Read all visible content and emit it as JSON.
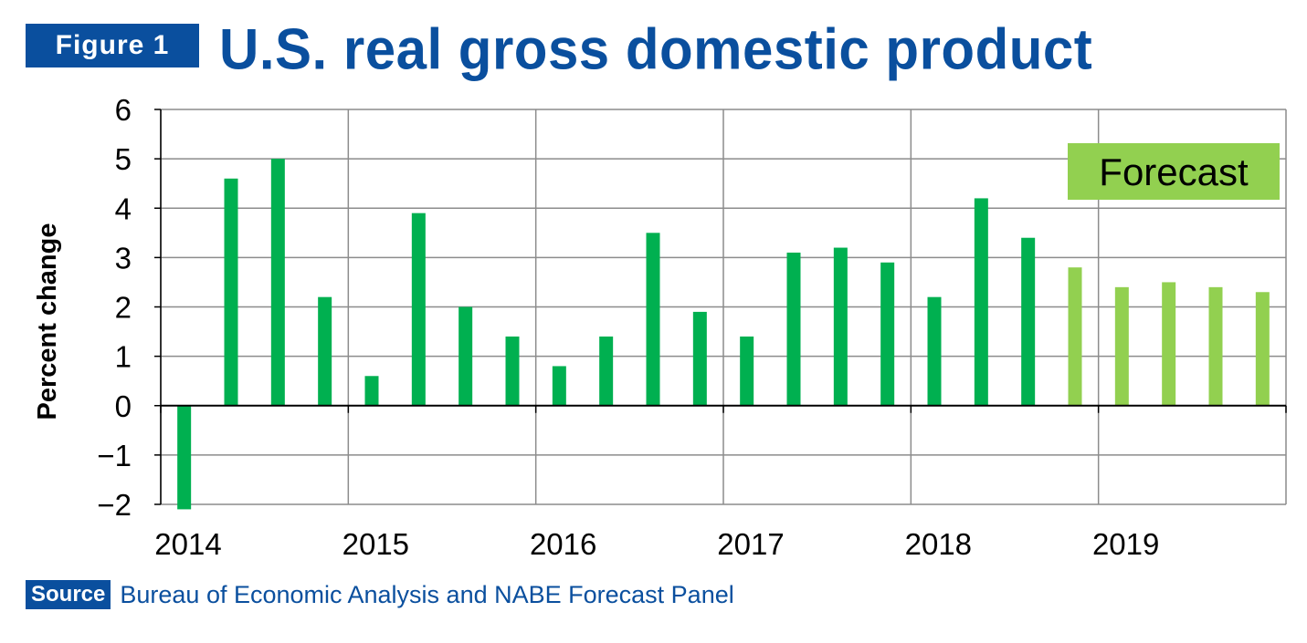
{
  "header": {
    "figure_label": "Figure 1",
    "title": "U.S. real gross domestic product"
  },
  "source": {
    "label": "Source",
    "text": "Bureau of Economic Analysis and NABE Forecast Panel"
  },
  "colors": {
    "brand_blue": "#0a4f9e",
    "actual_bar": "#00b050",
    "forecast_bar": "#92d050",
    "grid": "#8c8c8c"
  },
  "chart_data": {
    "type": "bar",
    "ylabel": "Percent change",
    "xlabel": "",
    "ylim": [
      -2,
      6
    ],
    "yticks": [
      6,
      5,
      4,
      3,
      2,
      1,
      0,
      -1,
      -2
    ],
    "ytick_labels": [
      "6",
      "5",
      "4",
      "3",
      "2",
      "1",
      "0",
      "−1",
      "−2"
    ],
    "year_labels": [
      "2014",
      "2015",
      "2016",
      "2017",
      "2018",
      "2019"
    ],
    "grid": true,
    "annotation": "Forecast",
    "series": [
      {
        "name": "",
        "values": [
          -2.1,
          4.6,
          5.0,
          2.2,
          0.6,
          3.9,
          2.0,
          1.4,
          0.8,
          1.4,
          3.5,
          1.9,
          1.4,
          3.1,
          3.2,
          2.9,
          2.2,
          4.2,
          3.4,
          2.8,
          2.4,
          2.5,
          2.4,
          2.3
        ],
        "forecast": [
          false,
          false,
          false,
          false,
          false,
          false,
          false,
          false,
          false,
          false,
          false,
          false,
          false,
          false,
          false,
          false,
          false,
          false,
          false,
          true,
          true,
          true,
          true,
          true
        ]
      }
    ]
  }
}
